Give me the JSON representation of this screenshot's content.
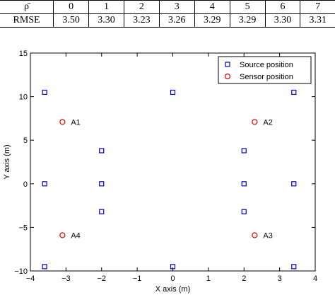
{
  "table": {
    "header": [
      "ρ̄",
      "0",
      "1",
      "2",
      "3",
      "4",
      "5",
      "6",
      "7"
    ],
    "row": [
      "RMSE",
      "3.50",
      "3.30",
      "3.23",
      "3.26",
      "3.29",
      "3.29",
      "3.30",
      "3.31"
    ]
  },
  "chart_data": {
    "type": "scatter",
    "xlabel": "X axis (m)",
    "ylabel": "Y axis (m)",
    "xlim": [
      -4,
      4
    ],
    "ylim": [
      -10,
      15
    ],
    "xticks": [
      -4,
      -3,
      -2,
      -1,
      0,
      1,
      2,
      3,
      4
    ],
    "yticks": [
      -10,
      -5,
      0,
      5,
      10,
      15
    ],
    "legend_position": "top-right",
    "series": [
      {
        "name": "Source position",
        "marker": "square",
        "color": "#0000cc",
        "points": [
          {
            "x": -3.6,
            "y": 10.5
          },
          {
            "x": 0,
            "y": 10.5
          },
          {
            "x": 3.4,
            "y": 10.5
          },
          {
            "x": -2,
            "y": 3.8
          },
          {
            "x": 2,
            "y": 3.8
          },
          {
            "x": -3.6,
            "y": 0
          },
          {
            "x": -2,
            "y": 0
          },
          {
            "x": 2,
            "y": 0
          },
          {
            "x": 3.4,
            "y": 0
          },
          {
            "x": -2,
            "y": -3.2
          },
          {
            "x": 2,
            "y": -3.2
          },
          {
            "x": -3.6,
            "y": -9.5
          },
          {
            "x": 0,
            "y": -9.5
          },
          {
            "x": 3.4,
            "y": -9.5
          }
        ]
      },
      {
        "name": "Sensor position",
        "marker": "circle",
        "color": "#dd0000",
        "points": [
          {
            "x": -3.1,
            "y": 7.1,
            "label": "A1"
          },
          {
            "x": 2.3,
            "y": 7.1,
            "label": "A2"
          },
          {
            "x": 2.3,
            "y": -5.9,
            "label": "A3"
          },
          {
            "x": -3.1,
            "y": -5.9,
            "label": "A4"
          }
        ]
      }
    ]
  }
}
